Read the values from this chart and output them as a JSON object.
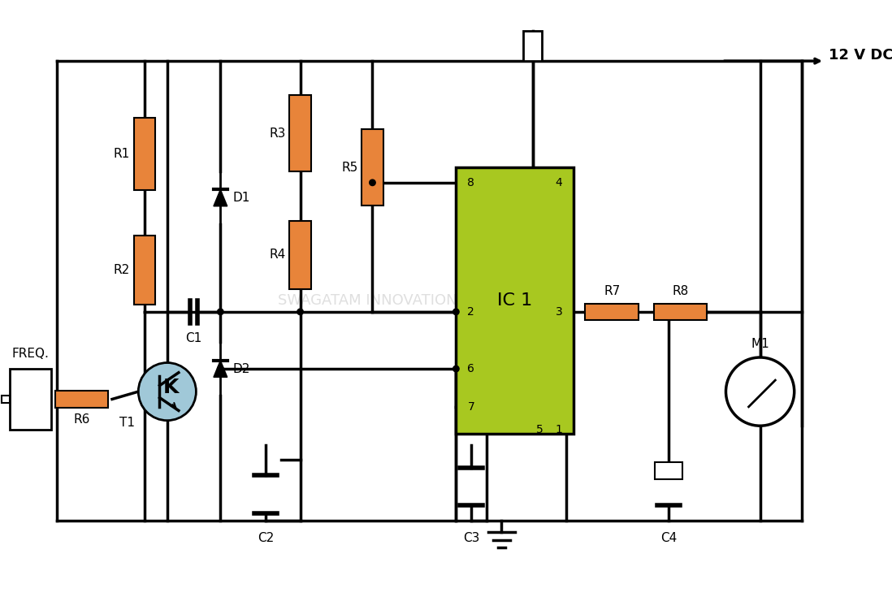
{
  "bg_color": "#ffffff",
  "resistor_color": "#e8843a",
  "resistor_dark_color": "#c8642a",
  "ic_color": "#a8c820",
  "wire_color": "#000000",
  "transistor_color": "#a0c8d8",
  "watermark_color": "#c0c0c0",
  "title_12vdc": "12 V DC",
  "label_freq": "FREQ.",
  "components": {
    "R1": "R1",
    "R2": "R2",
    "R3": "R3",
    "R4": "R4",
    "R5": "R5",
    "R6": "R6",
    "R7": "R7",
    "R8": "R8",
    "C1": "C1",
    "C2": "C2",
    "C3": "C3",
    "C4": "C4",
    "D1": "D1",
    "D2": "D2",
    "T1": "T1",
    "IC1": "IC 1",
    "M1": "M1"
  }
}
